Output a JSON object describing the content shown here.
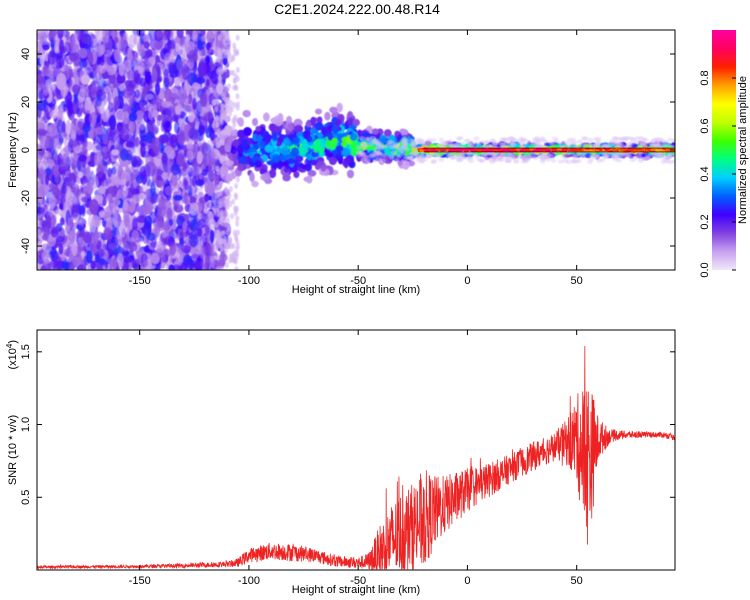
{
  "title": "C2E1.2024.222.00.48.R14",
  "chart_data": [
    {
      "type": "heatmap",
      "title": "C2E1.2024.222.00.48.R14",
      "xlabel": "Height of straight line (km)",
      "ylabel": "Frequency (Hz)",
      "xlim": [
        -197,
        95
      ],
      "ylim": [
        -50,
        50
      ],
      "x_ticks": [
        -150,
        -100,
        -50,
        0,
        50
      ],
      "x_tick_labels": [
        "-150",
        "-100",
        "-50",
        "0",
        "50"
      ],
      "y_ticks": [
        -40,
        -20,
        0,
        20,
        40
      ],
      "y_tick_labels": [
        "-40",
        "-20",
        "0",
        "20",
        "40"
      ],
      "colorbar": {
        "label": "Normalized spectral amplitude",
        "range": [
          0,
          1
        ],
        "ticks": [
          0.0,
          0.2,
          0.4,
          0.6,
          0.8
        ],
        "tick_labels": [
          "0.0",
          "0.2",
          "0.4",
          "0.6",
          "0.8"
        ],
        "colormap": [
          "#f0e8f8",
          "#c8a0f0",
          "#8040e0",
          "#4000ff",
          "#0060ff",
          "#00d0ff",
          "#00ff80",
          "#40ff00",
          "#c0ff00",
          "#ffff00",
          "#ffa000",
          "#ff2000",
          "#ff0060",
          "#ff00a0"
        ]
      },
      "signal_band": {
        "description_x": [
          -197,
          -110,
          -100,
          -80,
          -60,
          -50,
          -30,
          -20,
          0,
          20,
          50,
          60,
          95
        ],
        "center_freq": [
          0,
          0,
          0,
          0,
          4,
          2,
          1,
          0,
          0,
          0,
          0,
          0,
          0
        ],
        "amplitude": [
          0.12,
          0.15,
          0.45,
          0.5,
          0.55,
          0.6,
          0.62,
          0.95,
          0.98,
          0.95,
          0.92,
          0.9,
          0.88
        ]
      }
    },
    {
      "type": "line",
      "xlabel": "Height of straight line (km)",
      "ylabel": "SNR (10 * v/v)",
      "multiplier_label": "(x10",
      "multiplier_exp": "4",
      "multiplier_close": ")",
      "xlim": [
        -197,
        95
      ],
      "ylim": [
        0,
        1.65
      ],
      "x_ticks": [
        -150,
        -100,
        -50,
        0,
        50
      ],
      "x_tick_labels": [
        "-150",
        "-100",
        "-50",
        "0",
        "50"
      ],
      "y_ticks": [
        0.5,
        1.0,
        1.5
      ],
      "y_tick_labels": [
        "0.5",
        "1.0",
        "1.5"
      ],
      "color": "#ee2222",
      "series_envelope": {
        "x": [
          -197,
          -150,
          -130,
          -110,
          -105,
          -100,
          -90,
          -80,
          -70,
          -60,
          -50,
          -45,
          -40,
          -35,
          -30,
          -25,
          -20,
          -15,
          -10,
          -5,
          0,
          10,
          20,
          30,
          40,
          45,
          50,
          53,
          55,
          57,
          60,
          65,
          70,
          80,
          90,
          95
        ],
        "mean": [
          0.02,
          0.025,
          0.03,
          0.04,
          0.05,
          0.1,
          0.13,
          0.12,
          0.1,
          0.06,
          0.05,
          0.06,
          0.12,
          0.2,
          0.25,
          0.3,
          0.35,
          0.4,
          0.45,
          0.5,
          0.55,
          0.62,
          0.7,
          0.78,
          0.85,
          0.88,
          0.9,
          0.8,
          0.75,
          0.8,
          0.9,
          0.92,
          0.93,
          0.93,
          0.93,
          0.91
        ],
        "spread": [
          0.01,
          0.01,
          0.015,
          0.02,
          0.03,
          0.05,
          0.06,
          0.06,
          0.05,
          0.04,
          0.04,
          0.06,
          0.2,
          0.25,
          0.3,
          0.3,
          0.35,
          0.25,
          0.2,
          0.18,
          0.15,
          0.12,
          0.1,
          0.1,
          0.1,
          0.15,
          0.3,
          0.5,
          0.6,
          0.45,
          0.15,
          0.05,
          0.03,
          0.02,
          0.02,
          0.02
        ]
      }
    }
  ]
}
